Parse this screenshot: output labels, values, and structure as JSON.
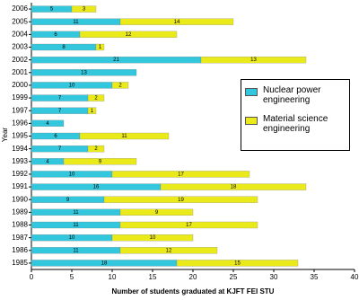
{
  "chart_data": {
    "type": "stacked_barh",
    "categories": [
      "2006",
      "2005",
      "2004",
      "2003",
      "2002",
      "2001",
      "2000",
      "1999",
      "1997",
      "1996",
      "1995",
      "1994",
      "1993",
      "1992",
      "1991",
      "1990",
      "1989",
      "1988",
      "1987",
      "1986",
      "1985"
    ],
    "series": [
      {
        "name": "Nuclear power engineering",
        "color": "#33c7dd",
        "values": [
          5,
          11,
          6,
          8,
          21,
          13,
          10,
          7,
          7,
          4,
          6,
          7,
          4,
          10,
          16,
          9,
          11,
          11,
          10,
          11,
          18
        ]
      },
      {
        "name": "Material science engineering",
        "color": "#eaea1a",
        "values": [
          3,
          14,
          12,
          1,
          13,
          0,
          2,
          2,
          1,
          0,
          11,
          2,
          9,
          17,
          18,
          19,
          9,
          17,
          10,
          12,
          15
        ]
      }
    ],
    "xlim": [
      0,
      40
    ],
    "xticks": [
      0,
      5,
      10,
      15,
      20,
      25,
      30,
      35,
      40
    ],
    "xlabel": "Number of students graduated at KJFT FEI STU",
    "ylabel": "Year",
    "grid": false
  }
}
